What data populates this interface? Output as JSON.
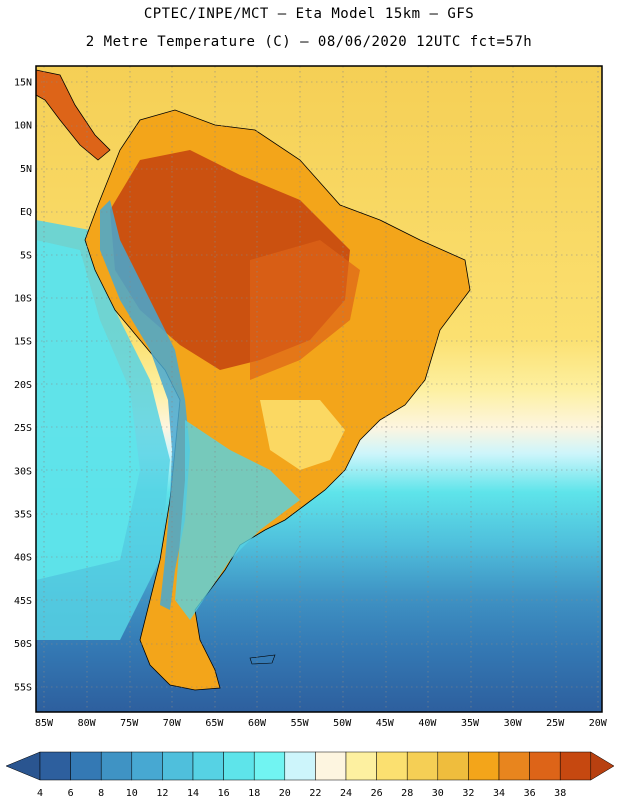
{
  "header": {
    "line1": "CPTEC/INPE/MCT –  Eta Model 15km – GFS",
    "line2": "2 Metre Temperature (C) – 08/06/2020 12UTC fct=57h"
  },
  "axes": {
    "lat_labels": [
      "15N",
      "10N",
      "5N",
      "EQ",
      "5S",
      "10S",
      "15S",
      "20S",
      "25S",
      "30S",
      "35S",
      "40S",
      "45S",
      "50S",
      "55S"
    ],
    "lon_labels": [
      "85W",
      "80W",
      "75W",
      "70W",
      "65W",
      "60W",
      "55W",
      "50W",
      "45W",
      "40W",
      "35W",
      "30W",
      "25W",
      "20W"
    ]
  },
  "colorbar": {
    "labels": [
      "4",
      "6",
      "8",
      "10",
      "12",
      "14",
      "16",
      "18",
      "20",
      "22",
      "24",
      "26",
      "28",
      "30",
      "32",
      "34",
      "36",
      "38"
    ],
    "colors": [
      "#2d5f9e",
      "#3479b4",
      "#3f93c4",
      "#47a8d2",
      "#4fbfdc",
      "#56d2e4",
      "#5ee4ea",
      "#71f4f2",
      "#cdf5fb",
      "#fdf5e0",
      "#fdf0a0",
      "#fbe070",
      "#f5cf55",
      "#efbd3d",
      "#f3a51a",
      "#e8851e",
      "#dd6418",
      "#c64810"
    ],
    "low_color": "#2a5590",
    "high_color": "#b84010"
  }
}
